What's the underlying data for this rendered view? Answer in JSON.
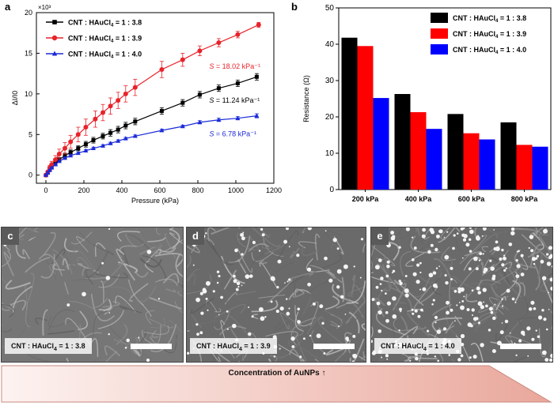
{
  "panels": {
    "a": "a",
    "b": "b",
    "c": "c",
    "d": "d",
    "e": "e"
  },
  "chart_data": [
    {
      "type": "line",
      "panel": "a",
      "title": "",
      "xlabel": "Pressure (kPa)",
      "ylabel": "ΔI/I0",
      "y_multiplier": "×10³",
      "xlim": [
        -50,
        1200
      ],
      "ylim": [
        -1,
        20
      ],
      "xticks": [
        0,
        200,
        400,
        600,
        800,
        1000,
        1200
      ],
      "yticks": [
        0,
        5,
        10,
        15,
        20
      ],
      "legend": [
        "CNT : HAuCl4 = 1 : 3.8",
        "CNT : HAuCl4 = 1 : 3.9",
        "CNT : HAuCl4 = 1 : 4.0"
      ],
      "series": [
        {
          "name": "CNT : HAuCl4 = 1 : 3.8",
          "color": "#000000",
          "marker": "square",
          "x": [
            0,
            10,
            20,
            30,
            50,
            70,
            100,
            130,
            170,
            210,
            250,
            300,
            340,
            380,
            420,
            470,
            610,
            720,
            810,
            910,
            1010,
            1110
          ],
          "y": [
            0,
            0.3,
            0.7,
            1.0,
            1.5,
            1.9,
            2.4,
            2.8,
            3.3,
            3.8,
            4.3,
            4.8,
            5.2,
            5.6,
            6.1,
            6.6,
            7.9,
            8.9,
            9.9,
            10.7,
            11.3,
            12.1
          ],
          "err": [
            0.05,
            0.1,
            0.1,
            0.15,
            0.2,
            0.25,
            0.3,
            0.3,
            0.3,
            0.35,
            0.35,
            0.35,
            0.4,
            0.4,
            0.4,
            0.4,
            0.4,
            0.4,
            0.4,
            0.4,
            0.4,
            0.4
          ]
        },
        {
          "name": "CNT : HAuCl4 = 1 : 3.9",
          "color": "#e8232a",
          "marker": "circle",
          "x": [
            0,
            10,
            20,
            30,
            50,
            70,
            100,
            130,
            170,
            210,
            260,
            300,
            340,
            380,
            420,
            470,
            610,
            720,
            810,
            910,
            1010,
            1120
          ],
          "y": [
            0,
            0.4,
            0.9,
            1.3,
            1.9,
            2.6,
            3.3,
            4.1,
            5.0,
            5.9,
            6.9,
            7.7,
            8.5,
            9.2,
            10.0,
            10.8,
            13.0,
            14.2,
            15.3,
            16.3,
            17.3,
            18.5
          ],
          "err": [
            0.05,
            0.2,
            0.3,
            0.4,
            0.5,
            0.6,
            0.7,
            0.8,
            0.9,
            1.0,
            1.0,
            1.0,
            1.0,
            1.0,
            1.0,
            1.0,
            1.0,
            0.8,
            0.6,
            0.5,
            0.4,
            0.3
          ]
        },
        {
          "name": "CNT : HAuCl4 = 1 : 4.0",
          "color": "#1a2ad8",
          "marker": "triangle",
          "x": [
            0,
            10,
            20,
            30,
            50,
            70,
            100,
            130,
            170,
            210,
            250,
            300,
            340,
            380,
            420,
            470,
            610,
            720,
            810,
            910,
            1010,
            1110
          ],
          "y": [
            0,
            0.3,
            0.6,
            0.9,
            1.3,
            1.7,
            2.1,
            2.4,
            2.7,
            3.0,
            3.3,
            3.6,
            3.9,
            4.2,
            4.5,
            4.8,
            5.5,
            6.0,
            6.5,
            6.8,
            7.0,
            7.3
          ],
          "err": [
            0.05,
            0.1,
            0.1,
            0.1,
            0.1,
            0.1,
            0.1,
            0.1,
            0.15,
            0.15,
            0.15,
            0.15,
            0.15,
            0.15,
            0.15,
            0.15,
            0.15,
            0.15,
            0.2,
            0.2,
            0.2,
            0.25
          ]
        }
      ],
      "annotations": [
        {
          "text": "S = 18.02 kPa⁻¹",
          "color": "#e8232a",
          "x": 860,
          "y": 13.1
        },
        {
          "text": "S = 11.24 kPa⁻¹",
          "color": "#000000",
          "x": 860,
          "y": 8.9
        },
        {
          "text": "S = 6.78 kPa⁻¹",
          "color": "#1a2ad8",
          "x": 860,
          "y": 4.8
        }
      ]
    },
    {
      "type": "bar",
      "panel": "b",
      "title": "",
      "xlabel": "",
      "ylabel": "Resistance (Ω)",
      "ylim": [
        0,
        50
      ],
      "yticks": [
        0,
        10,
        20,
        30,
        40,
        50
      ],
      "categories": [
        "200 kPa",
        "400 kPa",
        "600 kPa",
        "800 kPa"
      ],
      "legend_position": "top-right",
      "series": [
        {
          "name": "CNT : HAuCl4 = 1 : 3.8",
          "color": "#000000",
          "values": [
            41.8,
            26.3,
            20.8,
            18.5
          ]
        },
        {
          "name": "CNT : HAuCl4 = 1 : 3.9",
          "color": "#ff0000",
          "values": [
            39.5,
            21.3,
            15.5,
            12.3
          ]
        },
        {
          "name": "CNT : HAuCl4 = 1 : 4.0",
          "color": "#0000ff",
          "values": [
            25.2,
            16.7,
            13.8,
            11.8
          ]
        }
      ]
    }
  ],
  "sem": [
    {
      "letter": "c",
      "caption": "CNT : HAuCl4 = 1 : 3.8",
      "particle_count": 14
    },
    {
      "letter": "d",
      "caption": "CNT : HAuCl4 = 1 : 3.9",
      "particle_count": 110
    },
    {
      "letter": "e",
      "caption": "CNT : HAuCl4 = 1 : 4.0",
      "particle_count": 260
    }
  ],
  "arrow_label": "Concentration of AuNPs ↑"
}
